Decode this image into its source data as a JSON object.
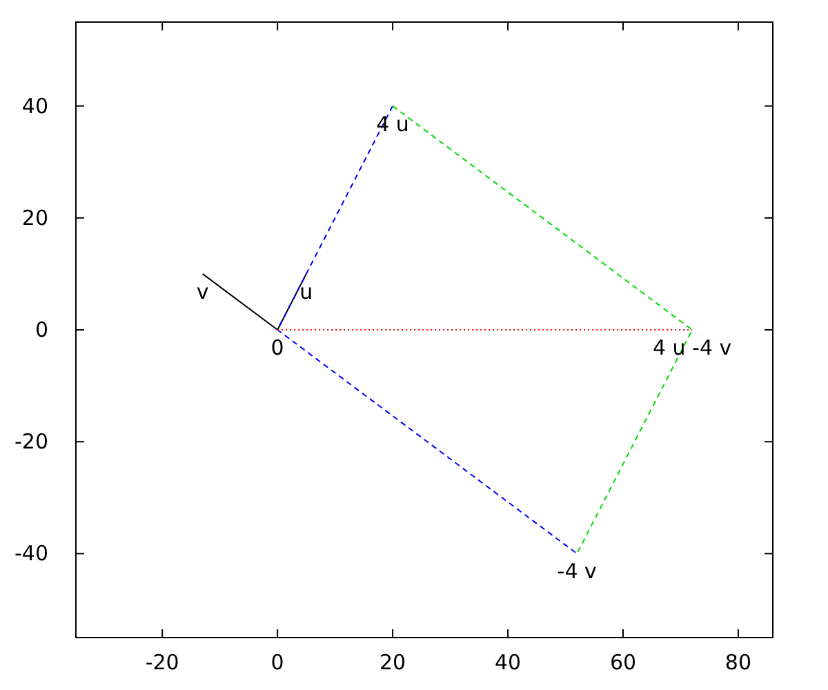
{
  "chart_data": {
    "type": "line",
    "xlim": [
      -35,
      86
    ],
    "ylim": [
      -55,
      55
    ],
    "xticks": [
      -20,
      0,
      20,
      40,
      60,
      80
    ],
    "yticks": [
      -40,
      -20,
      0,
      20,
      40
    ],
    "grid": false,
    "series": [
      {
        "color": "#000000",
        "x": [
          0,
          5
        ],
        "values": [
          0,
          10
        ],
        "line_style": "solid"
      },
      {
        "color": "#000000",
        "x": [
          0,
          -13
        ],
        "values": [
          0,
          10
        ],
        "line_style": "solid"
      },
      {
        "color": "#0000ff",
        "x": [
          20,
          0,
          52
        ],
        "values": [
          40,
          0,
          -40
        ],
        "line_style": "dashed"
      },
      {
        "color": "#00dd00",
        "x": [
          20,
          72,
          52
        ],
        "values": [
          40,
          0,
          -40
        ],
        "line_style": "dashed"
      },
      {
        "color": "#ff0000",
        "x": [
          0,
          72
        ],
        "values": [
          0,
          0
        ],
        "line_style": "dotted"
      }
    ],
    "annotations": [
      {
        "text": "0",
        "x": 0,
        "y": 0
      },
      {
        "text": "u",
        "x": 5,
        "y": 10
      },
      {
        "text": "v",
        "x": -13,
        "y": 10
      },
      {
        "text": "4 u",
        "x": 20,
        "y": 40
      },
      {
        "text": "-4 v",
        "x": 52,
        "y": -40
      },
      {
        "text": "4 u -4 v",
        "x": 72,
        "y": 0
      }
    ]
  }
}
